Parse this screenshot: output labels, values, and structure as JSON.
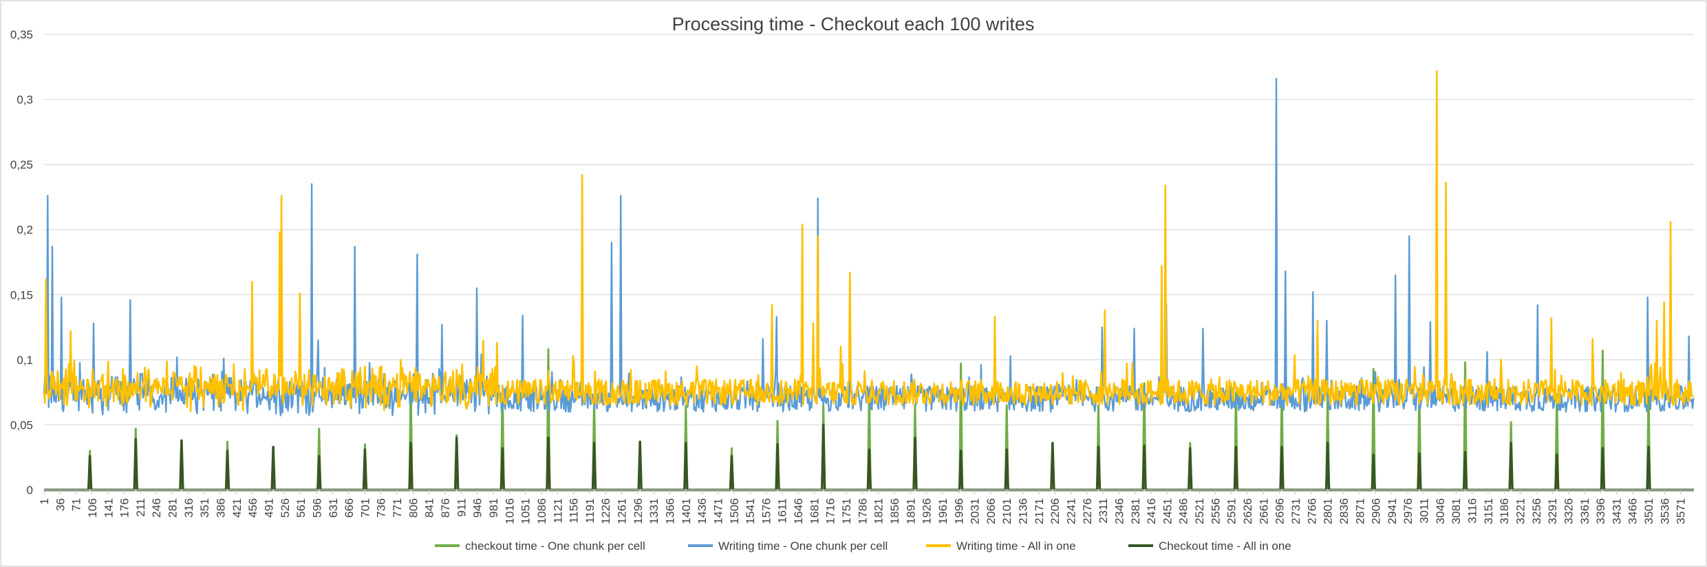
{
  "chart_data": {
    "type": "line",
    "title": "Processing time - Checkout each 100 writes",
    "xlabel": "",
    "ylabel": "",
    "ylim": [
      0,
      0.35
    ],
    "y_ticks": [
      "0",
      "0,05",
      "0,1",
      "0,15",
      "0,2",
      "0,25",
      "0,3",
      "0,35"
    ],
    "x_range": [
      1,
      3600
    ],
    "x_tick_labels": [
      "1",
      "36",
      "71",
      "106",
      "141",
      "176",
      "211",
      "246",
      "281",
      "316",
      "351",
      "386",
      "421",
      "456",
      "491",
      "526",
      "561",
      "596",
      "631",
      "666",
      "701",
      "736",
      "771",
      "806",
      "841",
      "876",
      "911",
      "946",
      "981",
      "1016",
      "1051",
      "1086",
      "1121",
      "1156",
      "1191",
      "1226",
      "1261",
      "1296",
      "1331",
      "1366",
      "1401",
      "1436",
      "1471",
      "1506",
      "1541",
      "1576",
      "1611",
      "1646",
      "1681",
      "1716",
      "1751",
      "1786",
      "1821",
      "1856",
      "1891",
      "1926",
      "1961",
      "1996",
      "2031",
      "2066",
      "2101",
      "2136",
      "2171",
      "2206",
      "2241",
      "2276",
      "2311",
      "2346",
      "2381",
      "2416",
      "2451",
      "2486",
      "2521",
      "2556",
      "2591",
      "2626",
      "2661",
      "2696",
      "2731",
      "2766",
      "2801",
      "2836",
      "2871",
      "2906",
      "2941",
      "2976",
      "3011",
      "3046",
      "3081",
      "3116",
      "3151",
      "3186",
      "3221",
      "3256",
      "3291",
      "3326",
      "3361",
      "3396",
      "3431",
      "3466",
      "3501",
      "3536",
      "3571"
    ],
    "grid": true,
    "legend_position": "bottom",
    "series": [
      {
        "name": "Writing time - One chunk per cell",
        "color": "#5B9BD5",
        "baseline": 0.07,
        "spikes": [
          [
            10,
            0.226
          ],
          [
            20,
            0.187
          ],
          [
            40,
            0.148
          ],
          [
            110,
            0.128
          ],
          [
            190,
            0.146
          ],
          [
            585,
            0.235
          ],
          [
            600,
            0.115
          ],
          [
            680,
            0.187
          ],
          [
            815,
            0.181
          ],
          [
            870,
            0.127
          ],
          [
            945,
            0.155
          ],
          [
            1045,
            0.134
          ],
          [
            1240,
            0.19
          ],
          [
            1260,
            0.226
          ],
          [
            1570,
            0.116
          ],
          [
            1600,
            0.133
          ],
          [
            1690,
            0.224
          ],
          [
            1760,
            0.128
          ],
          [
            2110,
            0.103
          ],
          [
            2310,
            0.125
          ],
          [
            2380,
            0.124
          ],
          [
            2450,
            0.143
          ],
          [
            2530,
            0.124
          ],
          [
            2690,
            0.316
          ],
          [
            2710,
            0.168
          ],
          [
            2770,
            0.152
          ],
          [
            2800,
            0.13
          ],
          [
            2950,
            0.165
          ],
          [
            2980,
            0.195
          ],
          [
            3025,
            0.129
          ],
          [
            3150,
            0.106
          ],
          [
            3260,
            0.142
          ],
          [
            3500,
            0.148
          ],
          [
            3590,
            0.118
          ]
        ]
      },
      {
        "name": "Writing time - All in one",
        "color": "#FFC000",
        "baseline": 0.075,
        "spikes": [
          [
            5,
            0.162
          ],
          [
            60,
            0.122
          ],
          [
            455,
            0.16
          ],
          [
            520,
            0.226
          ],
          [
            515,
            0.198
          ],
          [
            560,
            0.151
          ],
          [
            780,
            0.1
          ],
          [
            960,
            0.115
          ],
          [
            990,
            0.113
          ],
          [
            1175,
            0.242
          ],
          [
            1425,
            0.095
          ],
          [
            1590,
            0.142
          ],
          [
            1655,
            0.204
          ],
          [
            1680,
            0.128
          ],
          [
            1690,
            0.195
          ],
          [
            1740,
            0.11
          ],
          [
            1760,
            0.167
          ],
          [
            2075,
            0.133
          ],
          [
            2315,
            0.138
          ],
          [
            2440,
            0.172
          ],
          [
            2447,
            0.234
          ],
          [
            2780,
            0.13
          ],
          [
            3040,
            0.322
          ],
          [
            3060,
            0.236
          ],
          [
            3290,
            0.132
          ],
          [
            3380,
            0.116
          ],
          [
            3535,
            0.144
          ],
          [
            3550,
            0.206
          ],
          [
            3520,
            0.13
          ]
        ]
      },
      {
        "name": "checkout time - One chunk per cell",
        "color": "#70AD47",
        "x": [
          101,
          201,
          301,
          401,
          501,
          601,
          701,
          801,
          901,
          1001,
          1101,
          1201,
          1301,
          1401,
          1501,
          1601,
          1701,
          1801,
          1901,
          2001,
          2101,
          2201,
          2301,
          2401,
          2501,
          2601,
          2701,
          2801,
          2901,
          3001,
          3101,
          3201,
          3301,
          3401,
          3501
        ],
        "y": [
          0.03,
          0.047,
          0.038,
          0.037,
          0.033,
          0.047,
          0.035,
          0.082,
          0.042,
          0.08,
          0.108,
          0.07,
          0.037,
          0.065,
          0.032,
          0.053,
          0.065,
          0.075,
          0.065,
          0.097,
          0.065,
          0.036,
          0.065,
          0.082,
          0.036,
          0.075,
          0.075,
          0.075,
          0.093,
          0.078,
          0.098,
          0.052,
          0.073,
          0.107,
          0.074
        ]
      },
      {
        "name": "Checkout time - All in one",
        "color": "#375623",
        "x": [
          101,
          201,
          301,
          401,
          501,
          601,
          701,
          801,
          901,
          1001,
          1101,
          1201,
          1301,
          1401,
          1501,
          1601,
          1701,
          1801,
          1901,
          2001,
          2101,
          2201,
          2301,
          2401,
          2501,
          2601,
          2701,
          2801,
          2901,
          3001,
          3101,
          3201,
          3301,
          3401,
          3501
        ],
        "y": [
          0.026,
          0.039,
          0.038,
          0.03,
          0.033,
          0.026,
          0.031,
          0.036,
          0.04,
          0.032,
          0.04,
          0.036,
          0.037,
          0.036,
          0.026,
          0.035,
          0.05,
          0.031,
          0.04,
          0.03,
          0.031,
          0.036,
          0.033,
          0.034,
          0.032,
          0.033,
          0.033,
          0.036,
          0.027,
          0.028,
          0.029,
          0.036,
          0.027,
          0.032,
          0.033
        ]
      }
    ]
  }
}
